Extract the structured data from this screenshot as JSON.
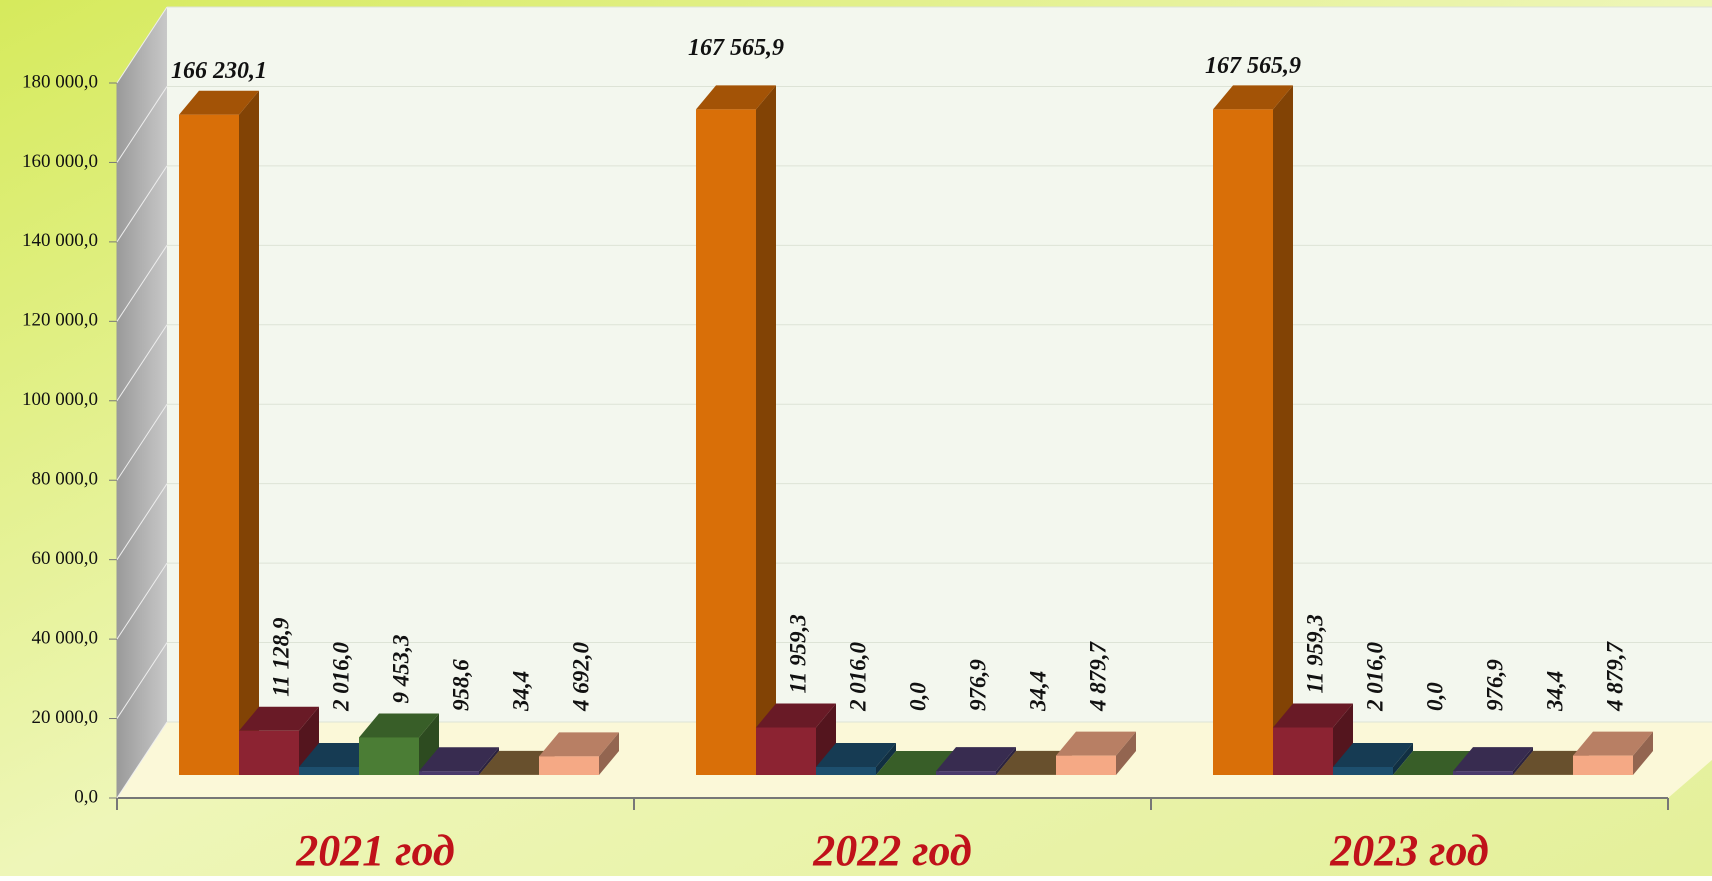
{
  "chart_data": {
    "type": "bar3d",
    "categories": [
      "2021 год",
      "2022 год",
      "2023 год"
    ],
    "series": [
      {
        "color": "#d96f08",
        "values": [
          166230.1,
          167565.9,
          167565.9
        ],
        "value_labels": [
          "166 230,1",
          "167 565,9",
          "167 565,9"
        ]
      },
      {
        "color": "#8c2332",
        "values": [
          11128.9,
          11959.3,
          11959.3
        ],
        "value_labels": [
          "11 128,9",
          "11 959,3",
          "11 959,3"
        ]
      },
      {
        "color": "#1d4f6e",
        "values": [
          2016.0,
          2016.0,
          2016.0
        ],
        "value_labels": [
          "2 016,0",
          "2 016,0",
          "2 016,0"
        ]
      },
      {
        "color": "#4b7d35",
        "values": [
          9453.3,
          0.0,
          0.0
        ],
        "value_labels": [
          "9 453,3",
          "0,0",
          "0,0"
        ]
      },
      {
        "color": "#4a3a6b",
        "values": [
          958.6,
          976.9,
          976.9
        ],
        "value_labels": [
          "958,6",
          "976,9",
          "976,9"
        ]
      },
      {
        "color": "#8a6a3c",
        "values": [
          34.4,
          34.4,
          34.4
        ],
        "value_labels": [
          "34,4",
          "34,4",
          "34,4"
        ]
      },
      {
        "color": "#f5a985",
        "values": [
          4692.0,
          4879.7,
          4879.7
        ],
        "value_labels": [
          "4 692,0",
          "4 879,7",
          "4 879,7"
        ]
      }
    ],
    "ylim": [
      0,
      180000
    ],
    "yticks": [
      {
        "value": 0,
        "label": "0,0"
      },
      {
        "value": 20000,
        "label": "20 000,0"
      },
      {
        "value": 40000,
        "label": "40 000,0"
      },
      {
        "value": 60000,
        "label": "60 000,0"
      },
      {
        "value": 80000,
        "label": "80 000,0"
      },
      {
        "value": 100000,
        "label": "100 000,0"
      },
      {
        "value": 120000,
        "label": "120 000,0"
      },
      {
        "value": 140000,
        "label": "140 000,0"
      },
      {
        "value": 160000,
        "label": "160 000,0"
      },
      {
        "value": 180000,
        "label": "180 000,0"
      }
    ],
    "grid": true
  }
}
